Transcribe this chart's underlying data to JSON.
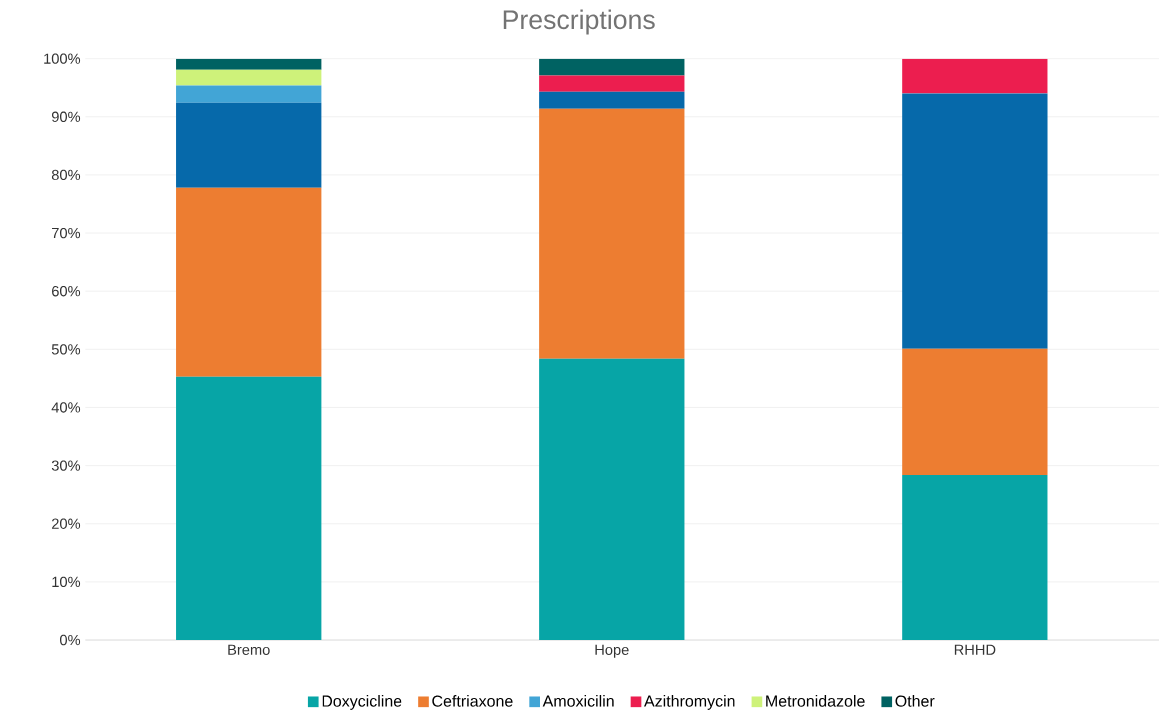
{
  "chart_data": {
    "type": "bar",
    "title": "Prescriptions",
    "stacked": true,
    "categories": [
      "Bremo",
      "Hope",
      "RHHD"
    ],
    "series": [
      {
        "name": "Doxycicline",
        "color": "#07a5a6",
        "values": [
          45.3,
          48.4,
          28.4
        ]
      },
      {
        "name": "Ceftriaxone",
        "color": "#ed7d31",
        "values": [
          32.5,
          43.0,
          21.7
        ]
      },
      {
        "color": "#0669aa",
        "values": [
          14.6,
          2.9,
          43.9
        ]
      },
      {
        "name": "Amoxicilin",
        "color": "#42a5d6",
        "values": [
          3.0,
          0,
          0
        ]
      },
      {
        "name": "Azithromycin",
        "color": "#ec1e4f",
        "values": [
          0,
          2.8,
          6.0
        ]
      },
      {
        "name": "Metronidazole",
        "color": "#cef27a",
        "values": [
          2.7,
          0,
          0
        ]
      },
      {
        "name": "Other",
        "color": "#006262",
        "values": [
          1.9,
          2.9,
          0
        ]
      }
    ],
    "ylim": [
      0,
      100
    ],
    "yticks": [
      {
        "value": 0,
        "label": "0%"
      },
      {
        "value": 10,
        "label": "10%"
      },
      {
        "value": 20,
        "label": "20%"
      },
      {
        "value": 30,
        "label": "30%"
      },
      {
        "value": 40,
        "label": "40%"
      },
      {
        "value": 50,
        "label": "50%"
      },
      {
        "value": 60,
        "label": "60%"
      },
      {
        "value": 70,
        "label": "70%"
      },
      {
        "value": 80,
        "label": "80%"
      },
      {
        "value": 90,
        "label": "90%"
      },
      {
        "value": 100,
        "label": "100%"
      }
    ],
    "grid": "y",
    "legend": "bottom"
  }
}
